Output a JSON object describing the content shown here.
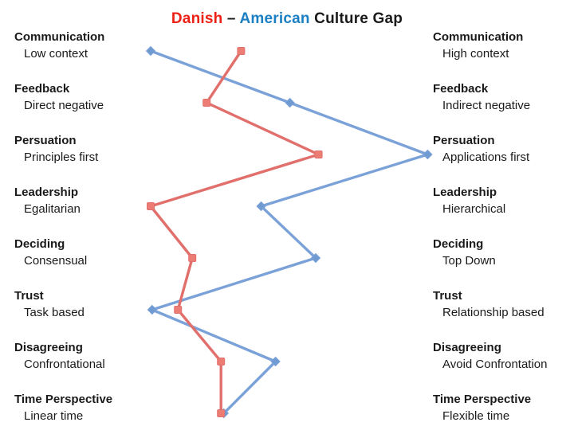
{
  "title": {
    "danish": "Danish",
    "separator": "–",
    "american": "American",
    "suffix": "Culture Gap"
  },
  "colors": {
    "danish_title": "#ed2015",
    "american_title": "#1b7fc4",
    "title_text": "#1a1a1a",
    "danish_line": "#e1706c",
    "danish_marker": "#ec7d74",
    "american_line": "#7ba2d8",
    "american_marker": "#6f9ad2",
    "label_text": "#1a1a1a",
    "background": "#ffffff"
  },
  "chart_data": {
    "type": "line",
    "title": "Danish – American Culture Gap",
    "orientation": "categories stacked vertically, value runs horizontally between opposing poles",
    "categories": [
      "Communication",
      "Feedback",
      "Persuation",
      "Leadership",
      "Deciding",
      "Trust",
      "Disagreeing",
      "Time Perspective"
    ],
    "poles": {
      "left": [
        "Low context",
        "Direct negative",
        "Principles first",
        "Egalitarian",
        "Consensual",
        "Task based",
        "Confrontational",
        "Linear time"
      ],
      "right": [
        "High context",
        "Indirect negative",
        "Applications first",
        "Hierarchical",
        "Top Down",
        "Relationship based",
        "Avoid Confrontation",
        "Flexible time"
      ]
    },
    "value_range": [
      0,
      100
    ],
    "grid": false,
    "axes_shown": false,
    "legend": "series names appear color-coded inside the title",
    "series": [
      {
        "name": "Danish",
        "marker": "square",
        "color": "#e1706c",
        "marker_color": "#ec7d74",
        "values": [
          34,
          22,
          61,
          2.5,
          17,
          12,
          27,
          27
        ]
      },
      {
        "name": "American",
        "marker": "diamond",
        "color": "#7ba2d8",
        "marker_color": "#6f9ad2",
        "values": [
          2.5,
          51,
          99,
          41,
          60,
          3,
          46,
          28
        ]
      }
    ]
  }
}
